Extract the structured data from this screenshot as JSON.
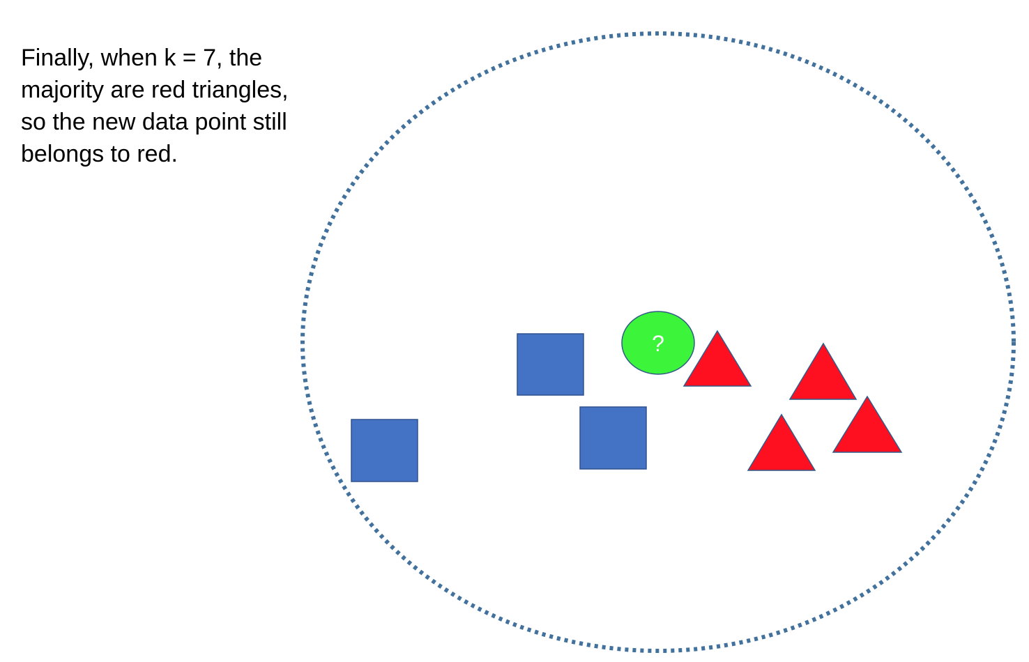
{
  "caption": {
    "lines": [
      "Finally, when k = 7, the",
      "majority are red triangles,",
      "so the new data point still",
      "belongs to red."
    ]
  },
  "new_point": {
    "label": "?",
    "fill": "#3cf43a",
    "stroke": "#2f5b88"
  },
  "neighborhood": {
    "stroke": "#41719c"
  },
  "classes": {
    "blue_square": {
      "fill": "#4472c4",
      "stroke": "#2f528f",
      "count": 3
    },
    "red_triangle": {
      "fill": "#ff1020",
      "stroke": "#2f5b88",
      "count": 4
    }
  }
}
